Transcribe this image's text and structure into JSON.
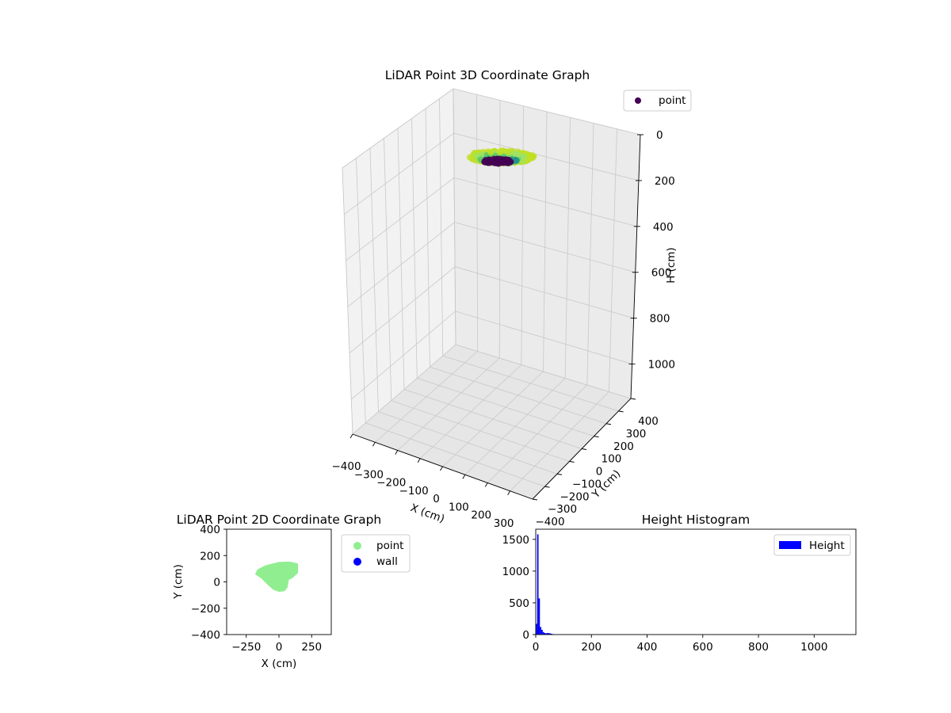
{
  "chart_data": [
    {
      "type": "scatter3d",
      "title": "LiDAR Point 3D Coordinate Graph",
      "xlabel": "X (cm)",
      "ylabel": "Y (cm)",
      "zlabel": "H (cm)",
      "xlim": [
        -400,
        400
      ],
      "ylim": [
        -400,
        400
      ],
      "zlim": [
        0,
        1150
      ],
      "z_inverted": true,
      "x_ticks": [
        -400,
        -300,
        -200,
        -100,
        0,
        100,
        200,
        300
      ],
      "y_ticks": [
        -400,
        -300,
        -200,
        -100,
        0,
        100,
        200,
        300,
        400
      ],
      "z_ticks": [
        0,
        200,
        400,
        600,
        800,
        1000
      ],
      "x_tick_labels": [
        "−400",
        "−300",
        "−200",
        "−100",
        "0",
        "100",
        "200",
        "300"
      ],
      "y_tick_labels": [
        "−400",
        "−300",
        "−200",
        "−100",
        "0",
        "100",
        "200",
        "300",
        "400"
      ],
      "z_tick_labels": [
        "0",
        "200",
        "400",
        "600",
        "800",
        "1000"
      ],
      "colormap": "viridis",
      "grid": true,
      "legend": {
        "position": "top-right",
        "entries": [
          {
            "name": "point",
            "color": "#440154"
          }
        ]
      },
      "series": [
        {
          "name": "point",
          "x_range": [
            -200,
            150
          ],
          "y_range": [
            -80,
            150
          ],
          "h_range": [
            0,
            60
          ]
        }
      ]
    },
    {
      "type": "scatter",
      "title": "LiDAR Point 2D Coordinate Graph",
      "xlabel": "X (cm)",
      "ylabel": "Y (cm)",
      "xlim": [
        -400,
        400
      ],
      "ylim": [
        -400,
        400
      ],
      "x_ticks": [
        -250,
        0,
        250
      ],
      "y_ticks": [
        -400,
        -200,
        0,
        200,
        400
      ],
      "x_tick_labels": [
        "−250",
        "0",
        "250"
      ],
      "y_tick_labels": [
        "−400",
        "−200",
        "0",
        "200",
        "400"
      ],
      "legend": {
        "position": "outside-right",
        "entries": [
          {
            "name": "point",
            "color": "#90ee90"
          },
          {
            "name": "wall",
            "color": "#0000ff"
          }
        ]
      },
      "series": [
        {
          "name": "point",
          "color": "#90ee90",
          "outline": [
            [
              -160,
              90
            ],
            [
              -100,
              120
            ],
            [
              0,
              145
            ],
            [
              80,
              148
            ],
            [
              140,
              135
            ],
            [
              140,
              70
            ],
            [
              100,
              35
            ],
            [
              70,
              20
            ],
            [
              60,
              -40
            ],
            [
              40,
              -65
            ],
            [
              0,
              -70
            ],
            [
              -40,
              -55
            ],
            [
              -80,
              -20
            ],
            [
              -130,
              30
            ],
            [
              -175,
              60
            ]
          ]
        },
        {
          "name": "wall",
          "color": "#0000ff",
          "points": []
        }
      ]
    },
    {
      "type": "histogram",
      "title": "Height Histogram",
      "xlim": [
        0,
        1150
      ],
      "ylim": [
        0,
        1660
      ],
      "x_ticks": [
        0,
        200,
        400,
        600,
        800,
        1000
      ],
      "y_ticks": [
        0,
        500,
        1000,
        1500
      ],
      "x_tick_labels": [
        "0",
        "200",
        "400",
        "600",
        "800",
        "1000"
      ],
      "y_tick_labels": [
        "0",
        "500",
        "1000",
        "1500"
      ],
      "color": "#0000ff",
      "legend": {
        "position": "top-right",
        "entries": [
          {
            "name": "Height",
            "color": "#0000ff"
          }
        ]
      },
      "bins": [
        {
          "x0": 0,
          "x1": 5,
          "count": 170
        },
        {
          "x0": 5,
          "x1": 10,
          "count": 1580
        },
        {
          "x0": 10,
          "x1": 15,
          "count": 570
        },
        {
          "x0": 15,
          "x1": 20,
          "count": 120
        },
        {
          "x0": 20,
          "x1": 25,
          "count": 75
        },
        {
          "x0": 25,
          "x1": 30,
          "count": 40
        },
        {
          "x0": 30,
          "x1": 35,
          "count": 25
        },
        {
          "x0": 35,
          "x1": 40,
          "count": 20
        },
        {
          "x0": 40,
          "x1": 45,
          "count": 25
        },
        {
          "x0": 45,
          "x1": 50,
          "count": 22
        },
        {
          "x0": 50,
          "x1": 55,
          "count": 18
        },
        {
          "x0": 55,
          "x1": 60,
          "count": 12
        },
        {
          "x0": 60,
          "x1": 65,
          "count": 6
        },
        {
          "x0": 65,
          "x1": 70,
          "count": 3
        }
      ]
    }
  ]
}
